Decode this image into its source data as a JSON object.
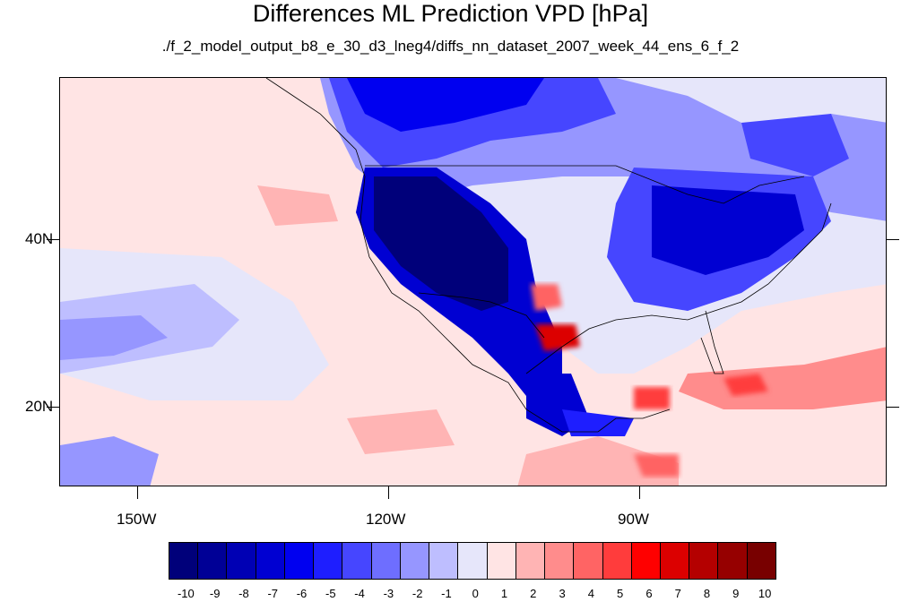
{
  "title": "Differences ML Prediction VPD [hPa]",
  "subtitle": "./f_2_model_output_b8_e_30_d3_lneg4/diffs_nn_dataset_2007_week_44_ens_6_f_2",
  "map": {
    "projection": "cylindrical equidistant",
    "lon_range": [
      -160,
      -61
    ],
    "lat_range": [
      11,
      60
    ],
    "lon_ticks": [
      "150W",
      "120W",
      "90W"
    ],
    "lat_ticks": [
      "40N",
      "20N"
    ],
    "boundaries": [
      "coastlines",
      "US state lines",
      "Canada/Mexico borders"
    ]
  },
  "colorbar": {
    "labels": [
      "-10",
      "-9",
      "-8",
      "-7",
      "-6",
      "-5",
      "-4",
      "-3",
      "-2",
      "-1",
      "0",
      "1",
      "2",
      "3",
      "4",
      "5",
      "6",
      "7",
      "8",
      "9",
      "10"
    ],
    "colors": [
      "#00007a",
      "#000096",
      "#0000b4",
      "#0000d2",
      "#0000f0",
      "#1e1eff",
      "#4646ff",
      "#6e6eff",
      "#9696ff",
      "#bebeff",
      "#e6e6fa",
      "#ffe4e4",
      "#ffb4b4",
      "#ff8c8c",
      "#ff6464",
      "#ff3c3c",
      "#ff0000",
      "#dc0000",
      "#b40000",
      "#960000",
      "#780000"
    ]
  }
}
